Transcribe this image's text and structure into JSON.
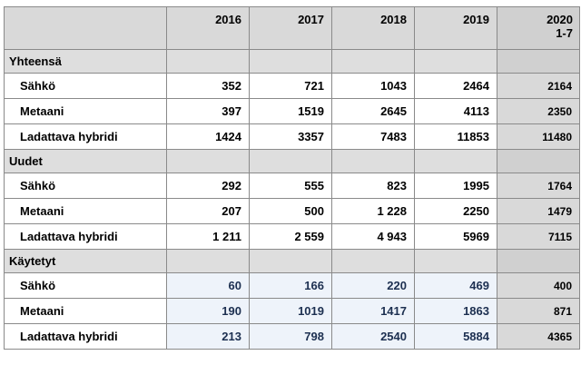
{
  "header": {
    "years": [
      "2016",
      "2017",
      "2018",
      "2019"
    ],
    "last_line1": "2020",
    "last_line2": "1-7"
  },
  "sections": [
    {
      "title": "Yhteensä",
      "rows": [
        {
          "label": "Sähkö",
          "values": [
            "352",
            "721",
            "1043",
            "2464"
          ],
          "last": "2164"
        },
        {
          "label": "Metaani",
          "values": [
            "397",
            "1519",
            "2645",
            "4113"
          ],
          "last": "2350"
        },
        {
          "label": "Ladattava hybridi",
          "values": [
            "1424",
            "3357",
            "7483",
            "11853"
          ],
          "last": "11480"
        }
      ]
    },
    {
      "title": "Uudet",
      "rows": [
        {
          "label": "Sähkö",
          "values": [
            "292",
            "555",
            "823",
            "1995"
          ],
          "last": "1764"
        },
        {
          "label": "Metaani",
          "values": [
            "207",
            "500",
            "1 228",
            "2250"
          ],
          "last": "1479"
        },
        {
          "label": "Ladattava hybridi",
          "values": [
            "1 211",
            "2 559",
            "4 943",
            "5969"
          ],
          "last": "7115"
        }
      ]
    },
    {
      "title": "Käytetyt",
      "rows": [
        {
          "label": "Sähkö",
          "values": [
            "60",
            "166",
            "220",
            "469"
          ],
          "last": "400"
        },
        {
          "label": "Metaani",
          "values": [
            "190",
            "1019",
            "1417",
            "1863"
          ],
          "last": "871"
        },
        {
          "label": "Ladattava hybridi",
          "values": [
            "213",
            "798",
            "2540",
            "5884"
          ],
          "last": "4365"
        }
      ]
    }
  ],
  "colors": {
    "header_bg": "#d9d9d9",
    "section_bg": "#dedede",
    "highlight_bg": "#eef3fa",
    "highlight_text": "#1c2f50"
  }
}
